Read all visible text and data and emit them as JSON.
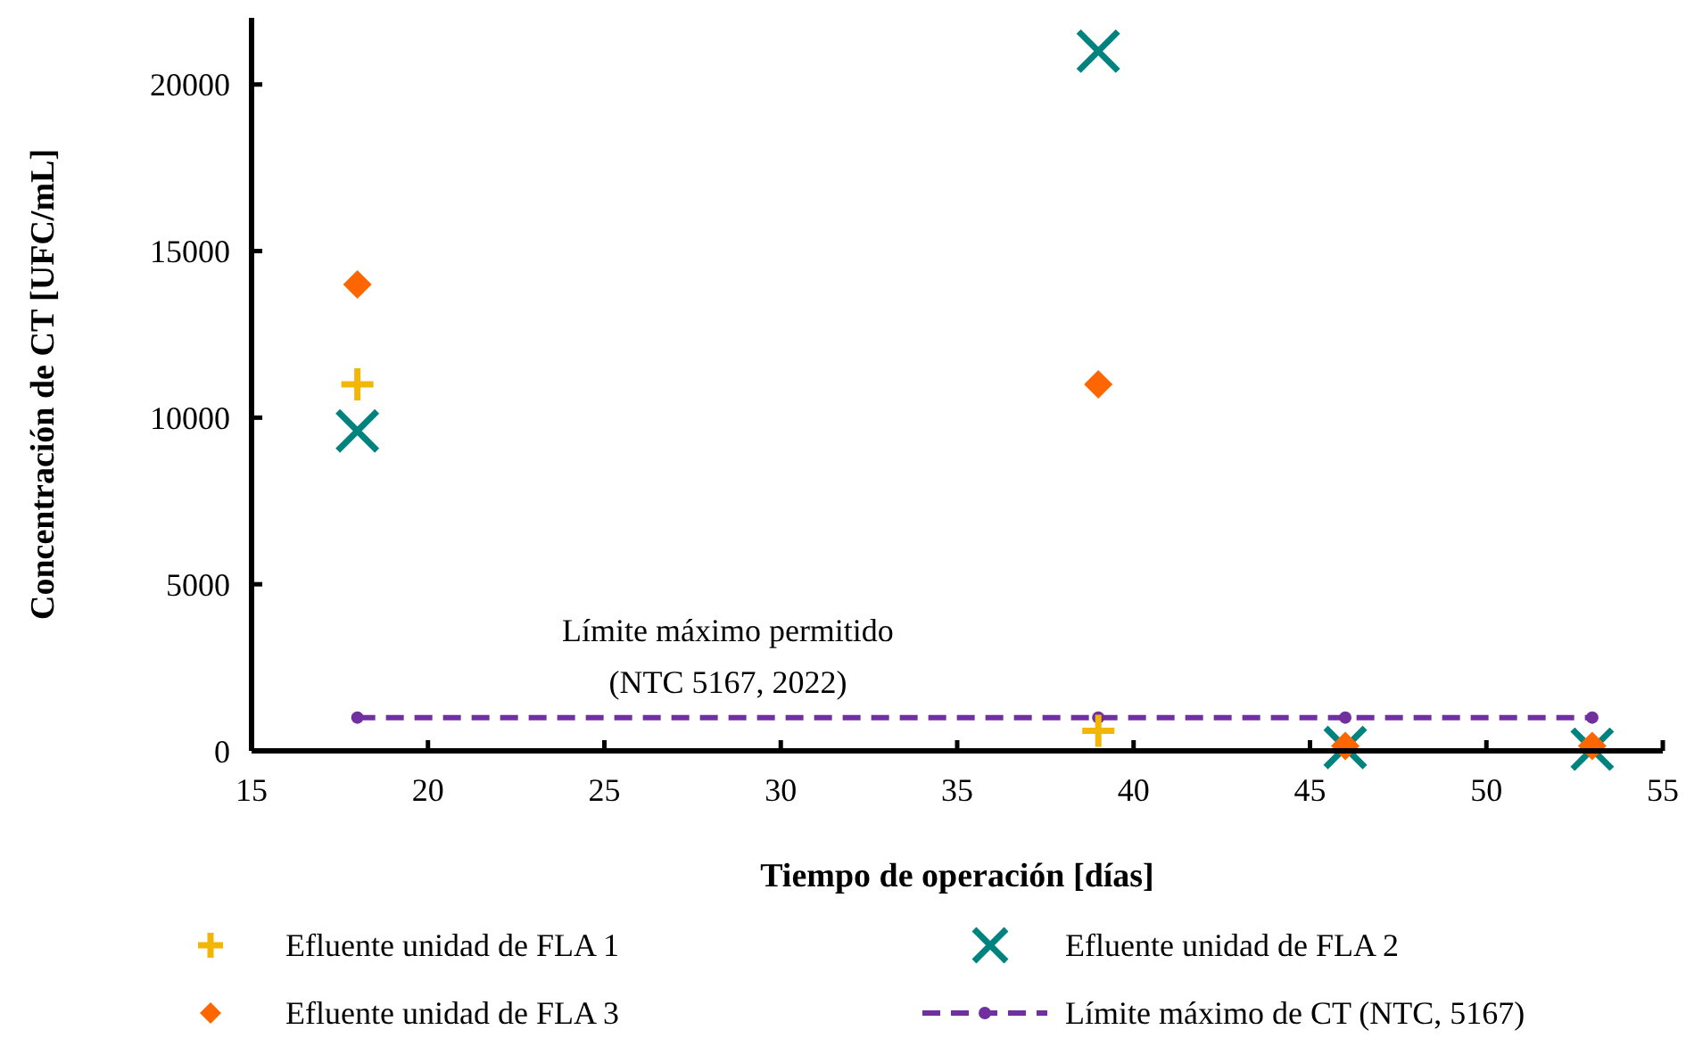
{
  "chart_data": {
    "type": "scatter",
    "xlabel": "Tiempo de operación [días]",
    "ylabel": "Concentración de CT [UFC/mL]",
    "x": [
      18,
      39,
      46,
      53
    ],
    "xlim": [
      15,
      55
    ],
    "xticks": [
      15,
      20,
      25,
      30,
      35,
      40,
      45,
      50,
      55
    ],
    "ylim": [
      0,
      22000
    ],
    "yticks": [
      0,
      5000,
      10000,
      15000,
      20000
    ],
    "grid": false,
    "legend": "bottom",
    "series": [
      {
        "name": "Efluente unidad de FLA 1",
        "color": "#f2b705",
        "marker": "plus",
        "values": [
          11000,
          600,
          null,
          null
        ]
      },
      {
        "name": "Efluente unidad de FLA 2",
        "color": "#00827f",
        "marker": "cross",
        "values": [
          9600,
          21000,
          100,
          50
        ]
      },
      {
        "name": "Efluente unidad de FLA 3",
        "color": "#ff6600",
        "marker": "diamond",
        "values": [
          14000,
          11000,
          150,
          150
        ]
      },
      {
        "name": "Límite máximo de CT (NTC, 5167)",
        "type": "line",
        "color": "#7030a0",
        "marker": "circle",
        "line_style": "dashed",
        "values": [
          1000,
          1000,
          1000,
          1000
        ]
      }
    ],
    "annotations": [
      {
        "text": "Límite máximo permitido\n(NTC 5167, 2022)",
        "x": 28.5,
        "y": 1000
      }
    ]
  }
}
